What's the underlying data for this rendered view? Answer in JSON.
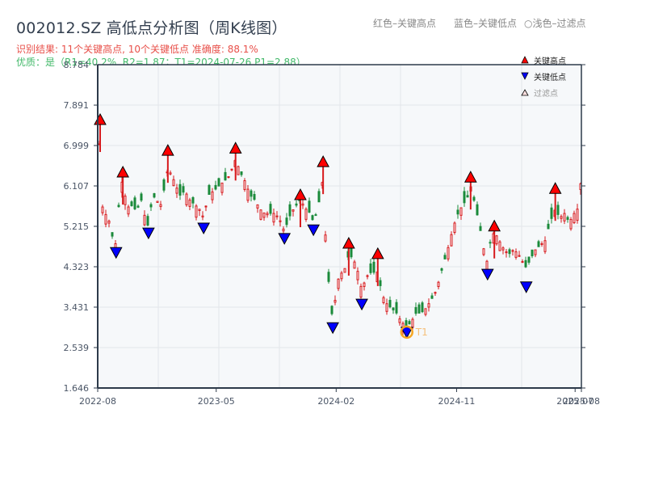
{
  "header": {
    "title": "002012.SZ 高低点分析图（周K线图）",
    "result_line": "识别结果: 11个关键高点, 10个关键低点  准确度: 88.1%",
    "quality_line": "优质：是（R1=40.2%, R2=1.87；T1=2024-07-26 P1=2.88）"
  },
  "top_legend": {
    "red": "红色–关键高点",
    "blue": "蓝色–关键低点",
    "light": "○浅色–过滤点"
  },
  "legend": {
    "high": "关键高点",
    "low": "关键低点",
    "filtered": "过滤点"
  },
  "colors": {
    "up": "#d7191c",
    "down": "#1a8a3a",
    "high_marker": "#ff0000",
    "low_marker": "#0000ff",
    "t1_circle": "#f5a623",
    "axis": "#2d3a4a",
    "grid": "#e3e6ea",
    "plot_bg": "#f6f8fa"
  },
  "chart_data": {
    "type": "candlestick",
    "title": "002012.SZ 高低点分析图（周K线图）",
    "xlabel": "",
    "ylabel": "",
    "ylim": [
      1.646,
      8.784
    ],
    "y_ticks": [
      "1.646",
      "2.539",
      "3.431",
      "4.323",
      "5.215",
      "6.107",
      "6.999",
      "7.891",
      "8.784"
    ],
    "x_ticks": [
      "2022-08",
      "2023-05",
      "2024-02",
      "2024-11",
      "2025-07",
      "2025-08"
    ],
    "x_tick_pos": [
      0,
      0.245,
      0.493,
      0.742,
      0.987,
      1.0
    ],
    "grid": true,
    "key_highs": [
      {
        "xpos": 0.005,
        "price": 7.57
      },
      {
        "xpos": 0.052,
        "price": 6.41
      },
      {
        "xpos": 0.145,
        "price": 6.89
      },
      {
        "xpos": 0.285,
        "price": 6.94
      },
      {
        "xpos": 0.419,
        "price": 5.91
      },
      {
        "xpos": 0.466,
        "price": 6.64
      },
      {
        "xpos": 0.519,
        "price": 4.84
      },
      {
        "xpos": 0.579,
        "price": 4.61
      },
      {
        "xpos": 0.771,
        "price": 6.3
      },
      {
        "xpos": 0.82,
        "price": 5.22
      },
      {
        "xpos": 0.946,
        "price": 6.05
      }
    ],
    "key_lows": [
      {
        "xpos": 0.038,
        "price": 4.64
      },
      {
        "xpos": 0.105,
        "price": 5.07
      },
      {
        "xpos": 0.219,
        "price": 5.18
      },
      {
        "xpos": 0.386,
        "price": 4.95
      },
      {
        "xpos": 0.446,
        "price": 5.14
      },
      {
        "xpos": 0.486,
        "price": 2.98
      },
      {
        "xpos": 0.546,
        "price": 3.5
      },
      {
        "xpos": 0.639,
        "price": 2.88
      },
      {
        "xpos": 0.806,
        "price": 4.16
      },
      {
        "xpos": 0.886,
        "price": 3.88
      }
    ],
    "t1": {
      "label": "T1",
      "date": "2024-07-26",
      "price": 2.88,
      "xpos": 0.639
    },
    "close_path": [
      [
        0.0,
        6.1
      ],
      [
        0.005,
        7.5
      ],
      [
        0.008,
        5.7
      ],
      [
        0.015,
        5.5
      ],
      [
        0.022,
        5.4
      ],
      [
        0.03,
        5.0
      ],
      [
        0.038,
        4.8
      ],
      [
        0.045,
        5.9
      ],
      [
        0.052,
        6.3
      ],
      [
        0.06,
        5.6
      ],
      [
        0.068,
        5.7
      ],
      [
        0.075,
        5.6
      ],
      [
        0.082,
        5.6
      ],
      [
        0.09,
        5.8
      ],
      [
        0.098,
        5.4
      ],
      [
        0.105,
        5.2
      ],
      [
        0.112,
        5.8
      ],
      [
        0.12,
        5.9
      ],
      [
        0.128,
        5.6
      ],
      [
        0.135,
        5.9
      ],
      [
        0.145,
        6.5
      ],
      [
        0.155,
        6.3
      ],
      [
        0.162,
        6.1
      ],
      [
        0.17,
        5.9
      ],
      [
        0.18,
        6.0
      ],
      [
        0.19,
        5.8
      ],
      [
        0.2,
        5.7
      ],
      [
        0.21,
        5.6
      ],
      [
        0.219,
        5.4
      ],
      [
        0.228,
        5.9
      ],
      [
        0.24,
        6.0
      ],
      [
        0.25,
        6.1
      ],
      [
        0.26,
        6.2
      ],
      [
        0.27,
        6.3
      ],
      [
        0.278,
        6.5
      ],
      [
        0.285,
        6.7
      ],
      [
        0.295,
        6.4
      ],
      [
        0.305,
        6.2
      ],
      [
        0.315,
        5.9
      ],
      [
        0.325,
        5.8
      ],
      [
        0.335,
        5.6
      ],
      [
        0.345,
        5.5
      ],
      [
        0.355,
        5.5
      ],
      [
        0.365,
        5.5
      ],
      [
        0.375,
        5.4
      ],
      [
        0.386,
        5.1
      ],
      [
        0.395,
        5.4
      ],
      [
        0.405,
        5.6
      ],
      [
        0.419,
        5.8
      ],
      [
        0.43,
        5.6
      ],
      [
        0.44,
        5.5
      ],
      [
        0.446,
        5.3
      ],
      [
        0.455,
        5.6
      ],
      [
        0.466,
        6.3
      ],
      [
        0.472,
        4.7
      ],
      [
        0.479,
        3.8
      ],
      [
        0.486,
        3.1
      ],
      [
        0.495,
        4.0
      ],
      [
        0.505,
        4.2
      ],
      [
        0.512,
        4.3
      ],
      [
        0.519,
        4.6
      ],
      [
        0.528,
        4.5
      ],
      [
        0.536,
        4.3
      ],
      [
        0.546,
        3.8
      ],
      [
        0.555,
        4.1
      ],
      [
        0.565,
        4.2
      ],
      [
        0.579,
        4.2
      ],
      [
        0.588,
        3.7
      ],
      [
        0.598,
        3.5
      ],
      [
        0.608,
        3.4
      ],
      [
        0.618,
        3.3
      ],
      [
        0.628,
        3.1
      ],
      [
        0.639,
        3.0
      ],
      [
        0.648,
        3.1
      ],
      [
        0.658,
        3.3
      ],
      [
        0.668,
        3.3
      ],
      [
        0.678,
        3.4
      ],
      [
        0.69,
        3.6
      ],
      [
        0.7,
        3.8
      ],
      [
        0.71,
        4.2
      ],
      [
        0.718,
        4.5
      ],
      [
        0.726,
        4.8
      ],
      [
        0.735,
        5.2
      ],
      [
        0.745,
        5.5
      ],
      [
        0.755,
        5.7
      ],
      [
        0.763,
        5.8
      ],
      [
        0.771,
        6.1
      ],
      [
        0.78,
        5.7
      ],
      [
        0.79,
        5.2
      ],
      [
        0.8,
        4.6
      ],
      [
        0.806,
        4.4
      ],
      [
        0.812,
        4.9
      ],
      [
        0.82,
        5.1
      ],
      [
        0.83,
        4.9
      ],
      [
        0.84,
        4.7
      ],
      [
        0.85,
        4.6
      ],
      [
        0.86,
        4.7
      ],
      [
        0.87,
        4.6
      ],
      [
        0.88,
        4.4
      ],
      [
        0.886,
        4.3
      ],
      [
        0.895,
        4.5
      ],
      [
        0.905,
        4.7
      ],
      [
        0.915,
        4.8
      ],
      [
        0.925,
        4.9
      ],
      [
        0.935,
        5.3
      ],
      [
        0.946,
        5.6
      ],
      [
        0.955,
        5.4
      ],
      [
        0.965,
        5.5
      ],
      [
        0.975,
        5.3
      ],
      [
        0.985,
        5.5
      ],
      [
        0.992,
        5.6
      ],
      [
        1.0,
        6.3
      ]
    ]
  }
}
